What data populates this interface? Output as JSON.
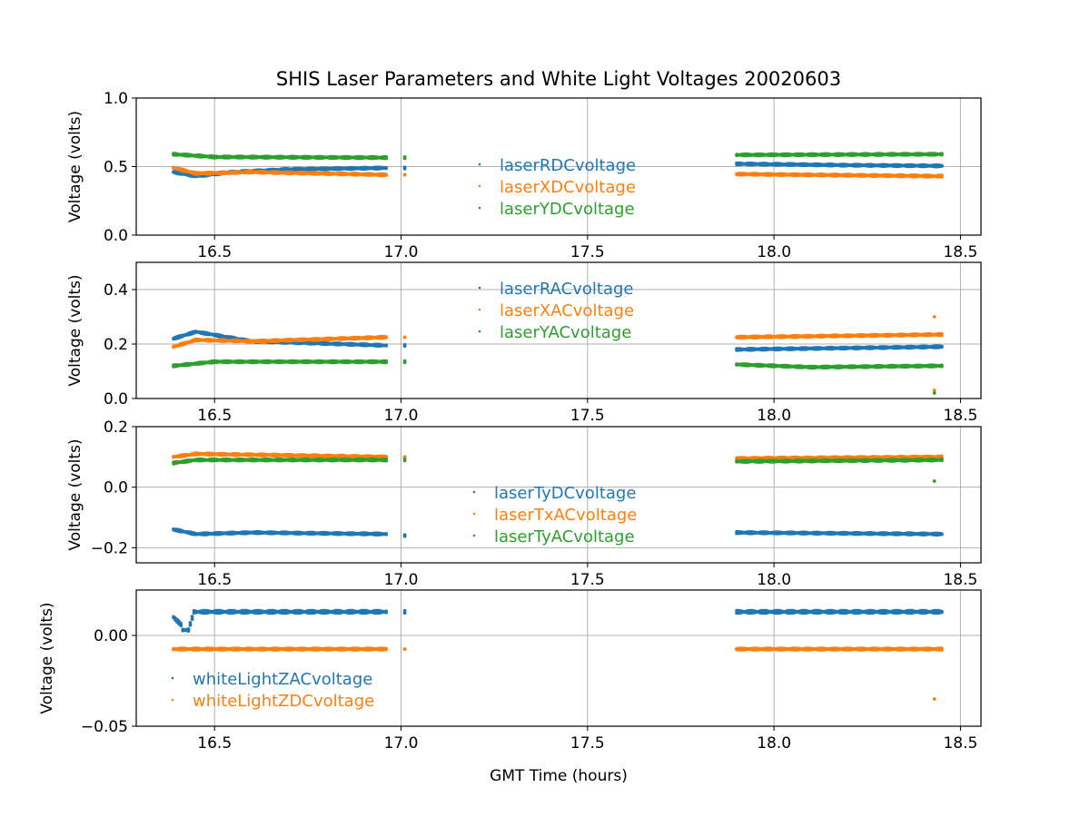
{
  "chart_data": {
    "type": "scatter",
    "title": "SHIS Laser Parameters and White Light Voltages 20020603",
    "xlabel": "GMT Time (hours)",
    "xlim": [
      16.29,
      18.555
    ],
    "xticks": [
      16.5,
      17.0,
      17.5,
      18.0,
      18.5
    ],
    "xtick_labels": [
      "16.5",
      "17.0",
      "17.5",
      "18.0",
      "18.5"
    ],
    "grid": true,
    "colors": [
      "#1f77b4",
      "#ff7f0e",
      "#2ca02c"
    ],
    "segments": [
      [
        16.39,
        16.96
      ],
      [
        17.01,
        17.01
      ],
      [
        17.9,
        18.45
      ]
    ],
    "panels": [
      {
        "ylabel": "Voltage (volts)",
        "ylim": [
          0.0,
          1.0
        ],
        "yticks": [
          0.0,
          0.5,
          1.0
        ],
        "ytick_labels": [
          "0.0",
          "0.5",
          "1.0"
        ],
        "legend_placement": "center",
        "series": [
          {
            "name": "laserRDCvoltage",
            "points": [
              [
                16.39,
                0.46
              ],
              [
                16.45,
                0.43
              ],
              [
                16.55,
                0.46
              ],
              [
                16.7,
                0.48
              ],
              [
                16.96,
                0.49
              ],
              [
                17.01,
                0.49
              ],
              [
                17.9,
                0.52
              ],
              [
                18.2,
                0.51
              ],
              [
                18.45,
                0.505
              ]
            ],
            "outliers": []
          },
          {
            "name": "laserXDCvoltage",
            "points": [
              [
                16.39,
                0.49
              ],
              [
                16.45,
                0.45
              ],
              [
                16.6,
                0.46
              ],
              [
                16.96,
                0.44
              ],
              [
                17.01,
                0.44
              ],
              [
                17.9,
                0.445
              ],
              [
                18.45,
                0.43
              ]
            ],
            "outliers": []
          },
          {
            "name": "laserYDCvoltage",
            "points": [
              [
                16.39,
                0.59
              ],
              [
                16.5,
                0.57
              ],
              [
                16.96,
                0.565
              ],
              [
                17.01,
                0.565
              ],
              [
                17.9,
                0.585
              ],
              [
                18.45,
                0.59
              ]
            ],
            "outliers": []
          }
        ]
      },
      {
        "ylabel": "Voltage (volts)",
        "ylim": [
          0.0,
          0.5
        ],
        "yticks": [
          0.0,
          0.2,
          0.4
        ],
        "ytick_labels": [
          "0.0",
          "0.2",
          "0.4"
        ],
        "legend_placement": "upper center",
        "series": [
          {
            "name": "laserRACvoltage",
            "points": [
              [
                16.39,
                0.22
              ],
              [
                16.45,
                0.245
              ],
              [
                16.6,
                0.21
              ],
              [
                16.96,
                0.195
              ],
              [
                17.01,
                0.195
              ],
              [
                17.9,
                0.18
              ],
              [
                18.45,
                0.19
              ]
            ],
            "outliers": []
          },
          {
            "name": "laserXACvoltage",
            "points": [
              [
                16.39,
                0.19
              ],
              [
                16.45,
                0.215
              ],
              [
                16.6,
                0.21
              ],
              [
                16.96,
                0.225
              ],
              [
                17.01,
                0.225
              ],
              [
                17.9,
                0.225
              ],
              [
                18.45,
                0.235
              ]
            ],
            "outliers": [
              [
                18.43,
                0.3
              ],
              [
                18.43,
                0.03
              ]
            ]
          },
          {
            "name": "laserYACvoltage",
            "points": [
              [
                16.39,
                0.12
              ],
              [
                16.5,
                0.135
              ],
              [
                16.96,
                0.135
              ],
              [
                17.01,
                0.135
              ],
              [
                17.9,
                0.125
              ],
              [
                18.1,
                0.115
              ],
              [
                18.45,
                0.12
              ]
            ],
            "outliers": [
              [
                18.43,
                0.02
              ]
            ]
          }
        ]
      },
      {
        "ylabel": "Voltage (volts)",
        "ylim": [
          -0.25,
          0.2
        ],
        "yticks": [
          -0.2,
          0.0,
          0.2
        ],
        "ytick_labels": [
          "−0.2",
          "0.0",
          "0.2"
        ],
        "legend_placement": "center",
        "series": [
          {
            "name": "laserTyDCvoltage",
            "points": [
              [
                16.39,
                -0.14
              ],
              [
                16.45,
                -0.155
              ],
              [
                16.6,
                -0.15
              ],
              [
                16.96,
                -0.155
              ],
              [
                17.01,
                -0.16
              ],
              [
                17.9,
                -0.15
              ],
              [
                18.45,
                -0.155
              ]
            ],
            "outliers": []
          },
          {
            "name": "laserTxACvoltage",
            "points": [
              [
                16.39,
                0.1
              ],
              [
                16.45,
                0.11
              ],
              [
                16.96,
                0.1
              ],
              [
                17.01,
                0.1
              ],
              [
                17.9,
                0.095
              ],
              [
                18.45,
                0.1
              ]
            ],
            "outliers": []
          },
          {
            "name": "laserTyACvoltage",
            "points": [
              [
                16.39,
                0.08
              ],
              [
                16.45,
                0.09
              ],
              [
                16.96,
                0.09
              ],
              [
                17.01,
                0.09
              ],
              [
                17.9,
                0.085
              ],
              [
                18.45,
                0.09
              ]
            ],
            "outliers": [
              [
                18.43,
                0.02
              ]
            ]
          }
        ]
      },
      {
        "ylabel": "Voltage (volts)",
        "ylim": [
          -0.05,
          0.025
        ],
        "yticks": [
          -0.05,
          0.0
        ],
        "ytick_labels": [
          "−0.05",
          "0.00"
        ],
        "legend_placement": "lower left",
        "series": [
          {
            "name": "whiteLightZACvoltage",
            "points": [
              [
                16.39,
                0.01
              ],
              [
                16.41,
                0.006
              ],
              [
                16.415,
                0.003
              ],
              [
                16.43,
                0.003
              ],
              [
                16.445,
                0.013
              ],
              [
                16.96,
                0.013
              ],
              [
                17.01,
                0.013
              ],
              [
                17.9,
                0.013
              ],
              [
                18.45,
                0.013
              ]
            ],
            "outliers": []
          },
          {
            "name": "whiteLightZDCvoltage",
            "points": [
              [
                16.39,
                -0.0075
              ],
              [
                16.96,
                -0.0075
              ],
              [
                17.01,
                -0.0075
              ],
              [
                17.9,
                -0.0075
              ],
              [
                18.45,
                -0.0075
              ]
            ],
            "outliers": [
              [
                18.43,
                -0.035
              ]
            ]
          }
        ]
      }
    ]
  }
}
